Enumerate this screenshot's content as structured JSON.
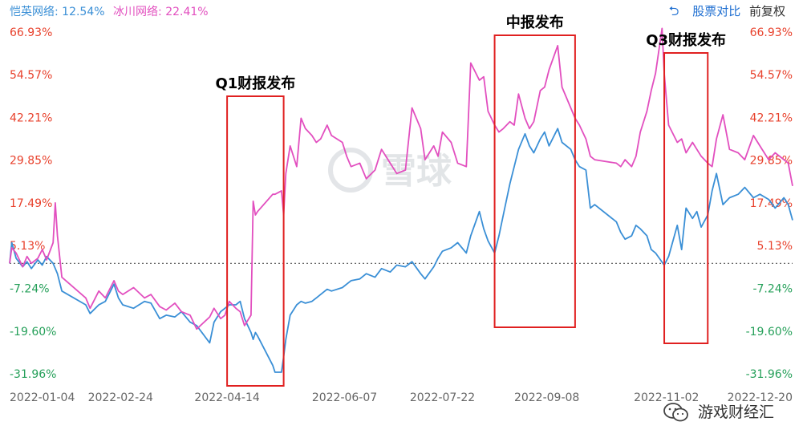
{
  "legend": [
    {
      "label": "恺英网络:",
      "value": "12.54%",
      "color": "#3a8fd6"
    },
    {
      "label": "冰川网络:",
      "value": "22.41%",
      "color": "#e24fbf"
    }
  ],
  "toolbar": {
    "back_icon": "undo-icon",
    "compare_label": "股票对比",
    "adjust_label": "前复权"
  },
  "watermark": "雪球",
  "footer": {
    "wechat_icon": "wechat-icon",
    "label": "游戏财经汇"
  },
  "annotations": [
    {
      "label": "Q1财报发布",
      "x_start": "2022-04-14",
      "x_end": "2022-05-10"
    },
    {
      "label": "中报发布",
      "x_start": "2022-08-15",
      "x_end": "2022-09-21"
    },
    {
      "label": "Q3财报发布",
      "x_start": "2022-11-01",
      "x_end": "2022-11-21"
    }
  ],
  "chart_data": {
    "type": "line",
    "y_ticks_left": [
      "66.93%",
      "54.57%",
      "42.21%",
      "29.85%",
      "17.49%",
      "5.13%",
      "-7.24%",
      "-19.60%",
      "-31.96%"
    ],
    "y_ticks_right": [
      "66.93%",
      "54.57%",
      "42.21%",
      "29.85%",
      "17.49%",
      "5.13%",
      "-7.24%",
      "-19.60%",
      "-31.96%"
    ],
    "y_tick_values": [
      66.93,
      54.57,
      42.21,
      29.85,
      17.49,
      5.13,
      -7.24,
      -19.6,
      -31.96
    ],
    "x_ticks": [
      "2022-01-04",
      "2022-02-24",
      "2022-04-14",
      "2022-06-07",
      "2022-07-22",
      "2022-09-08",
      "2022-11-02",
      "2022-12-20"
    ],
    "x_range": [
      "2022-01-04",
      "2022-12-30"
    ],
    "ylim": [
      -31.96,
      66.93
    ],
    "positive_color": "#e8412c",
    "negative_color": "#26a05a",
    "zero_line": "dotted",
    "series": [
      {
        "name": "恺英网络",
        "color": "#3a8fd6",
        "points": [
          [
            "2022-01-04",
            0.0
          ],
          [
            "2022-01-05",
            6.0
          ],
          [
            "2022-01-07",
            1.5
          ],
          [
            "2022-01-10",
            -1.0
          ],
          [
            "2022-01-12",
            0.5
          ],
          [
            "2022-01-14",
            -1.5
          ],
          [
            "2022-01-17",
            1.0
          ],
          [
            "2022-01-19",
            -0.5
          ],
          [
            "2022-01-21",
            2.0
          ],
          [
            "2022-01-24",
            0.0
          ],
          [
            "2022-01-26",
            -3.0
          ],
          [
            "2022-01-28",
            -8.0
          ],
          [
            "2022-02-08",
            -12.0
          ],
          [
            "2022-02-10",
            -14.5
          ],
          [
            "2022-02-14",
            -12.0
          ],
          [
            "2022-02-17",
            -11.0
          ],
          [
            "2022-02-21",
            -6.0
          ],
          [
            "2022-02-23",
            -10.0
          ],
          [
            "2022-02-25",
            -12.0
          ],
          [
            "2022-03-02",
            -13.0
          ],
          [
            "2022-03-07",
            -11.0
          ],
          [
            "2022-03-10",
            -11.5
          ],
          [
            "2022-03-14",
            -16.0
          ],
          [
            "2022-03-17",
            -15.0
          ],
          [
            "2022-03-21",
            -15.5
          ],
          [
            "2022-03-24",
            -14.0
          ],
          [
            "2022-03-28",
            -17.0
          ],
          [
            "2022-03-31",
            -18.0
          ],
          [
            "2022-04-06",
            -23.0
          ],
          [
            "2022-04-08",
            -17.0
          ],
          [
            "2022-04-11",
            -14.0
          ],
          [
            "2022-04-13",
            -13.0
          ],
          [
            "2022-04-15",
            -12.0
          ],
          [
            "2022-04-18",
            -12.0
          ],
          [
            "2022-04-20",
            -11.0
          ],
          [
            "2022-04-22",
            -16.0
          ],
          [
            "2022-04-25",
            -20.0
          ],
          [
            "2022-04-26",
            -22.0
          ],
          [
            "2022-04-27",
            -20.0
          ],
          [
            "2022-04-28",
            -21.0
          ],
          [
            "2022-05-05",
            -29.5
          ],
          [
            "2022-05-06",
            -31.5
          ],
          [
            "2022-05-09",
            -31.5
          ],
          [
            "2022-05-10",
            -27.0
          ],
          [
            "2022-05-11",
            -22.0
          ],
          [
            "2022-05-13",
            -15.0
          ],
          [
            "2022-05-16",
            -12.0
          ],
          [
            "2022-05-18",
            -11.0
          ],
          [
            "2022-05-20",
            -11.5
          ],
          [
            "2022-05-23",
            -11.0
          ],
          [
            "2022-05-25",
            -10.0
          ],
          [
            "2022-05-27",
            -9.0
          ],
          [
            "2022-05-30",
            -7.5
          ],
          [
            "2022-06-01",
            -8.0
          ],
          [
            "2022-06-06",
            -7.0
          ],
          [
            "2022-06-08",
            -6.0
          ],
          [
            "2022-06-10",
            -5.0
          ],
          [
            "2022-06-14",
            -4.5
          ],
          [
            "2022-06-17",
            -3.0
          ],
          [
            "2022-06-21",
            -4.0
          ],
          [
            "2022-06-24",
            -1.5
          ],
          [
            "2022-06-28",
            -2.5
          ],
          [
            "2022-07-01",
            -0.5
          ],
          [
            "2022-07-05",
            -1.0
          ],
          [
            "2022-07-08",
            0.5
          ],
          [
            "2022-07-12",
            -3.0
          ],
          [
            "2022-07-14",
            -4.5
          ],
          [
            "2022-07-18",
            -1.0
          ],
          [
            "2022-07-20",
            1.5
          ],
          [
            "2022-07-22",
            3.5
          ],
          [
            "2022-07-26",
            4.5
          ],
          [
            "2022-07-29",
            6.0
          ],
          [
            "2022-08-02",
            3.0
          ],
          [
            "2022-08-04",
            8.0
          ],
          [
            "2022-08-08",
            15.0
          ],
          [
            "2022-08-10",
            10.0
          ],
          [
            "2022-08-12",
            6.5
          ],
          [
            "2022-08-15",
            3.0
          ],
          [
            "2022-08-17",
            8.0
          ],
          [
            "2022-08-19",
            14.0
          ],
          [
            "2022-08-22",
            23.0
          ],
          [
            "2022-08-24",
            28.0
          ],
          [
            "2022-08-26",
            33.0
          ],
          [
            "2022-08-29",
            37.5
          ],
          [
            "2022-08-31",
            34.0
          ],
          [
            "2022-09-02",
            32.0
          ],
          [
            "2022-09-05",
            36.0
          ],
          [
            "2022-09-07",
            38.0
          ],
          [
            "2022-09-09",
            34.0
          ],
          [
            "2022-09-13",
            39.0
          ],
          [
            "2022-09-15",
            35.0
          ],
          [
            "2022-09-19",
            33.0
          ],
          [
            "2022-09-21",
            30.0
          ],
          [
            "2022-09-23",
            28.0
          ],
          [
            "2022-09-26",
            27.0
          ],
          [
            "2022-09-28",
            16.0
          ],
          [
            "2022-09-30",
            17.0
          ],
          [
            "2022-10-10",
            12.0
          ],
          [
            "2022-10-12",
            9.0
          ],
          [
            "2022-10-14",
            7.0
          ],
          [
            "2022-10-17",
            8.0
          ],
          [
            "2022-10-19",
            11.0
          ],
          [
            "2022-10-21",
            10.0
          ],
          [
            "2022-10-24",
            8.0
          ],
          [
            "2022-10-26",
            4.0
          ],
          [
            "2022-10-28",
            3.0
          ],
          [
            "2022-11-01",
            -0.5
          ],
          [
            "2022-11-03",
            2.0
          ],
          [
            "2022-11-07",
            11.0
          ],
          [
            "2022-11-09",
            4.0
          ],
          [
            "2022-11-11",
            16.0
          ],
          [
            "2022-11-14",
            13.0
          ],
          [
            "2022-11-16",
            15.0
          ],
          [
            "2022-11-18",
            10.5
          ],
          [
            "2022-11-21",
            14.0
          ],
          [
            "2022-11-23",
            21.0
          ],
          [
            "2022-11-25",
            26.0
          ],
          [
            "2022-11-28",
            17.0
          ],
          [
            "2022-12-01",
            19.0
          ],
          [
            "2022-12-05",
            20.0
          ],
          [
            "2022-12-08",
            22.0
          ],
          [
            "2022-12-12",
            19.0
          ],
          [
            "2022-12-15",
            20.0
          ],
          [
            "2022-12-19",
            18.5
          ],
          [
            "2022-12-22",
            16.0
          ],
          [
            "2022-12-26",
            19.0
          ],
          [
            "2022-12-28",
            17.0
          ],
          [
            "2022-12-30",
            12.5
          ]
        ]
      },
      {
        "name": "冰川网络",
        "color": "#e24fbf",
        "points": [
          [
            "2022-01-04",
            0.0
          ],
          [
            "2022-01-05",
            4.5
          ],
          [
            "2022-01-07",
            3.0
          ],
          [
            "2022-01-10",
            -1.0
          ],
          [
            "2022-01-12",
            2.0
          ],
          [
            "2022-01-14",
            0.0
          ],
          [
            "2022-01-17",
            1.5
          ],
          [
            "2022-01-19",
            4.0
          ],
          [
            "2022-01-21",
            1.0
          ],
          [
            "2022-01-24",
            6.0
          ],
          [
            "2022-01-25",
            17.5
          ],
          [
            "2022-01-26",
            8.0
          ],
          [
            "2022-01-28",
            -4.0
          ],
          [
            "2022-02-08",
            -10.0
          ],
          [
            "2022-02-10",
            -13.0
          ],
          [
            "2022-02-14",
            -8.0
          ],
          [
            "2022-02-17",
            -10.0
          ],
          [
            "2022-02-21",
            -5.0
          ],
          [
            "2022-02-23",
            -8.0
          ],
          [
            "2022-02-25",
            -9.0
          ],
          [
            "2022-03-02",
            -7.0
          ],
          [
            "2022-03-07",
            -10.0
          ],
          [
            "2022-03-10",
            -9.0
          ],
          [
            "2022-03-14",
            -12.5
          ],
          [
            "2022-03-17",
            -13.5
          ],
          [
            "2022-03-21",
            -11.5
          ],
          [
            "2022-03-24",
            -14.0
          ],
          [
            "2022-03-28",
            -15.0
          ],
          [
            "2022-03-31",
            -19.0
          ],
          [
            "2022-04-06",
            -15.5
          ],
          [
            "2022-04-08",
            -13.0
          ],
          [
            "2022-04-11",
            -16.0
          ],
          [
            "2022-04-13",
            -15.0
          ],
          [
            "2022-04-15",
            -11.0
          ],
          [
            "2022-04-18",
            -13.0
          ],
          [
            "2022-04-20",
            -14.0
          ],
          [
            "2022-04-22",
            -18.0
          ],
          [
            "2022-04-25",
            -15.0
          ],
          [
            "2022-04-26",
            18.0
          ],
          [
            "2022-04-27",
            14.0
          ],
          [
            "2022-04-28",
            15.0
          ],
          [
            "2022-05-05",
            20.0
          ],
          [
            "2022-05-06",
            20.0
          ],
          [
            "2022-05-09",
            21.0
          ],
          [
            "2022-05-10",
            14.0
          ],
          [
            "2022-05-11",
            26.0
          ],
          [
            "2022-05-13",
            34.0
          ],
          [
            "2022-05-16",
            28.0
          ],
          [
            "2022-05-18",
            42.0
          ],
          [
            "2022-05-20",
            39.0
          ],
          [
            "2022-05-23",
            37.0
          ],
          [
            "2022-05-25",
            35.0
          ],
          [
            "2022-05-27",
            36.0
          ],
          [
            "2022-05-30",
            40.0
          ],
          [
            "2022-06-01",
            37.0
          ],
          [
            "2022-06-06",
            35.0
          ],
          [
            "2022-06-08",
            31.0
          ],
          [
            "2022-06-10",
            28.0
          ],
          [
            "2022-06-14",
            29.0
          ],
          [
            "2022-06-17",
            24.5
          ],
          [
            "2022-06-21",
            27.0
          ],
          [
            "2022-06-24",
            33.0
          ],
          [
            "2022-06-28",
            29.0
          ],
          [
            "2022-07-01",
            26.0
          ],
          [
            "2022-07-05",
            27.0
          ],
          [
            "2022-07-08",
            45.0
          ],
          [
            "2022-07-12",
            39.0
          ],
          [
            "2022-07-14",
            30.0
          ],
          [
            "2022-07-18",
            34.0
          ],
          [
            "2022-07-20",
            31.0
          ],
          [
            "2022-07-22",
            38.0
          ],
          [
            "2022-07-26",
            35.0
          ],
          [
            "2022-07-29",
            29.0
          ],
          [
            "2022-08-02",
            28.0
          ],
          [
            "2022-08-04",
            58.0
          ],
          [
            "2022-08-08",
            53.0
          ],
          [
            "2022-08-10",
            54.0
          ],
          [
            "2022-08-12",
            44.0
          ],
          [
            "2022-08-15",
            40.0
          ],
          [
            "2022-08-17",
            38.0
          ],
          [
            "2022-08-19",
            39.0
          ],
          [
            "2022-08-22",
            41.0
          ],
          [
            "2022-08-24",
            40.0
          ],
          [
            "2022-08-26",
            49.0
          ],
          [
            "2022-08-29",
            42.0
          ],
          [
            "2022-08-31",
            39.0
          ],
          [
            "2022-09-02",
            41.0
          ],
          [
            "2022-09-05",
            50.0
          ],
          [
            "2022-09-07",
            51.0
          ],
          [
            "2022-09-09",
            56.0
          ],
          [
            "2022-09-13",
            63.0
          ],
          [
            "2022-09-15",
            51.0
          ],
          [
            "2022-09-19",
            45.0
          ],
          [
            "2022-09-21",
            42.0
          ],
          [
            "2022-09-23",
            40.0
          ],
          [
            "2022-09-26",
            36.0
          ],
          [
            "2022-09-28",
            31.0
          ],
          [
            "2022-09-30",
            30.0
          ],
          [
            "2022-10-10",
            29.0
          ],
          [
            "2022-10-12",
            28.0
          ],
          [
            "2022-10-14",
            30.0
          ],
          [
            "2022-10-17",
            28.0
          ],
          [
            "2022-10-19",
            31.0
          ],
          [
            "2022-10-21",
            38.0
          ],
          [
            "2022-10-24",
            44.0
          ],
          [
            "2022-10-26",
            50.0
          ],
          [
            "2022-10-28",
            55.0
          ],
          [
            "2022-10-31",
            68.0
          ],
          [
            "2022-11-01",
            55.0
          ],
          [
            "2022-11-03",
            40.0
          ],
          [
            "2022-11-07",
            35.0
          ],
          [
            "2022-11-09",
            36.0
          ],
          [
            "2022-11-11",
            32.0
          ],
          [
            "2022-11-14",
            35.0
          ],
          [
            "2022-11-16",
            33.0
          ],
          [
            "2022-11-18",
            31.0
          ],
          [
            "2022-11-21",
            29.0
          ],
          [
            "2022-11-23",
            28.0
          ],
          [
            "2022-11-25",
            36.0
          ],
          [
            "2022-11-28",
            43.0
          ],
          [
            "2022-12-01",
            33.0
          ],
          [
            "2022-12-05",
            32.0
          ],
          [
            "2022-12-08",
            30.0
          ],
          [
            "2022-12-12",
            37.0
          ],
          [
            "2022-12-15",
            34.0
          ],
          [
            "2022-12-19",
            30.0
          ],
          [
            "2022-12-22",
            32.0
          ],
          [
            "2022-12-26",
            30.0
          ],
          [
            "2022-12-28",
            29.0
          ],
          [
            "2022-12-30",
            22.4
          ]
        ]
      }
    ]
  }
}
